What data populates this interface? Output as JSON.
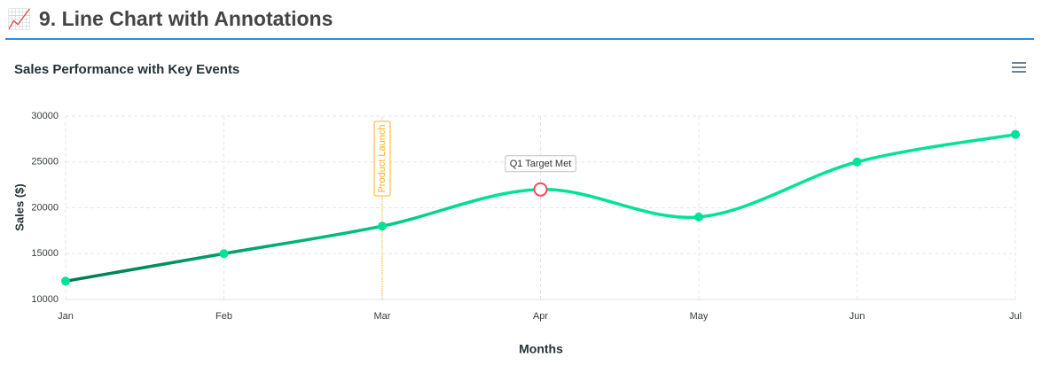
{
  "header": {
    "icon": "📈",
    "title": "9. Line Chart with Annotations"
  },
  "chart_data": {
    "type": "line",
    "title": "Sales Performance with Key Events",
    "x_label": "Months",
    "y_label": "Sales ($)",
    "categories": [
      "Jan",
      "Feb",
      "Mar",
      "Apr",
      "May",
      "Jun",
      "Jul"
    ],
    "values": [
      12000,
      15000,
      18000,
      22000,
      19000,
      25000,
      28000
    ],
    "color": "#00e396",
    "gradient_start_color": "#00774f",
    "ylim": [
      10000,
      30000
    ],
    "yticks": [
      10000,
      15000,
      20000,
      25000,
      30000
    ],
    "grid": true,
    "annotations": {
      "x": [
        {
          "x": "Mar",
          "label": "Product Launch",
          "color": "#feb019"
        }
      ],
      "points": [
        {
          "x": "Apr",
          "y": 22000,
          "label": "Q1 Target Met",
          "color": "#ff4560"
        }
      ]
    }
  }
}
